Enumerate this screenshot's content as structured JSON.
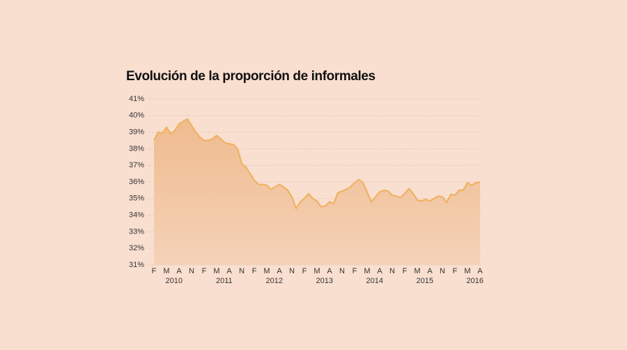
{
  "chart_data": {
    "type": "area",
    "title": "Evolución de la proporción de informales",
    "categories": [
      "F",
      null,
      null,
      "M",
      null,
      null,
      "A",
      null,
      null,
      "N",
      null,
      null,
      "F",
      null,
      null,
      "M",
      null,
      null,
      "A",
      null,
      null,
      "N",
      null,
      null,
      "F",
      null,
      null,
      "M",
      null,
      null,
      "A",
      null,
      null,
      "N",
      null,
      null,
      "F",
      null,
      null,
      "M",
      null,
      null,
      "A",
      null,
      null,
      "N",
      null,
      null,
      "F",
      null,
      null,
      "M",
      null,
      null,
      "A",
      null,
      null,
      "N",
      null,
      null,
      "F",
      null,
      null,
      "M",
      null,
      null,
      "A",
      null,
      null,
      "N",
      null,
      null,
      "F",
      null,
      null,
      "M",
      null,
      null,
      "A"
    ],
    "years": [
      "2010",
      "2011",
      "2012",
      "2013",
      "2014",
      "2015",
      "2016"
    ],
    "values": [
      38.5,
      39.0,
      38.95,
      39.3,
      38.9,
      39.1,
      39.5,
      39.65,
      39.8,
      39.4,
      39.0,
      38.7,
      38.5,
      38.5,
      38.6,
      38.8,
      38.6,
      38.35,
      38.3,
      38.25,
      38.0,
      37.1,
      36.9,
      36.5,
      36.1,
      35.85,
      35.85,
      35.8,
      35.55,
      35.7,
      35.85,
      35.7,
      35.5,
      35.1,
      34.4,
      34.8,
      35.0,
      35.3,
      35.0,
      34.85,
      34.5,
      34.55,
      34.8,
      34.7,
      35.35,
      35.45,
      35.55,
      35.7,
      35.95,
      36.15,
      35.95,
      35.4,
      34.8,
      35.1,
      35.4,
      35.5,
      35.45,
      35.2,
      35.15,
      35.05,
      35.3,
      35.6,
      35.3,
      34.9,
      34.85,
      34.95,
      34.85,
      35.0,
      35.15,
      35.1,
      34.75,
      35.25,
      35.2,
      35.5,
      35.5,
      35.95,
      35.8,
      35.95,
      36.0
    ],
    "color": "#efb262",
    "ylim": [
      31,
      41
    ],
    "yticks": [
      {
        "value": 31,
        "label": "31%"
      },
      {
        "value": 32,
        "label": "32%"
      },
      {
        "value": 33,
        "label": "33%"
      },
      {
        "value": 34,
        "label": "34%"
      },
      {
        "value": 35,
        "label": "35%"
      },
      {
        "value": 36,
        "label": "36%"
      },
      {
        "value": 37,
        "label": "37%"
      },
      {
        "value": 38,
        "label": "38%"
      },
      {
        "value": 39,
        "label": "39%"
      },
      {
        "value": 40,
        "label": "40%"
      },
      {
        "value": 41,
        "label": "41%"
      }
    ],
    "grid": true
  }
}
